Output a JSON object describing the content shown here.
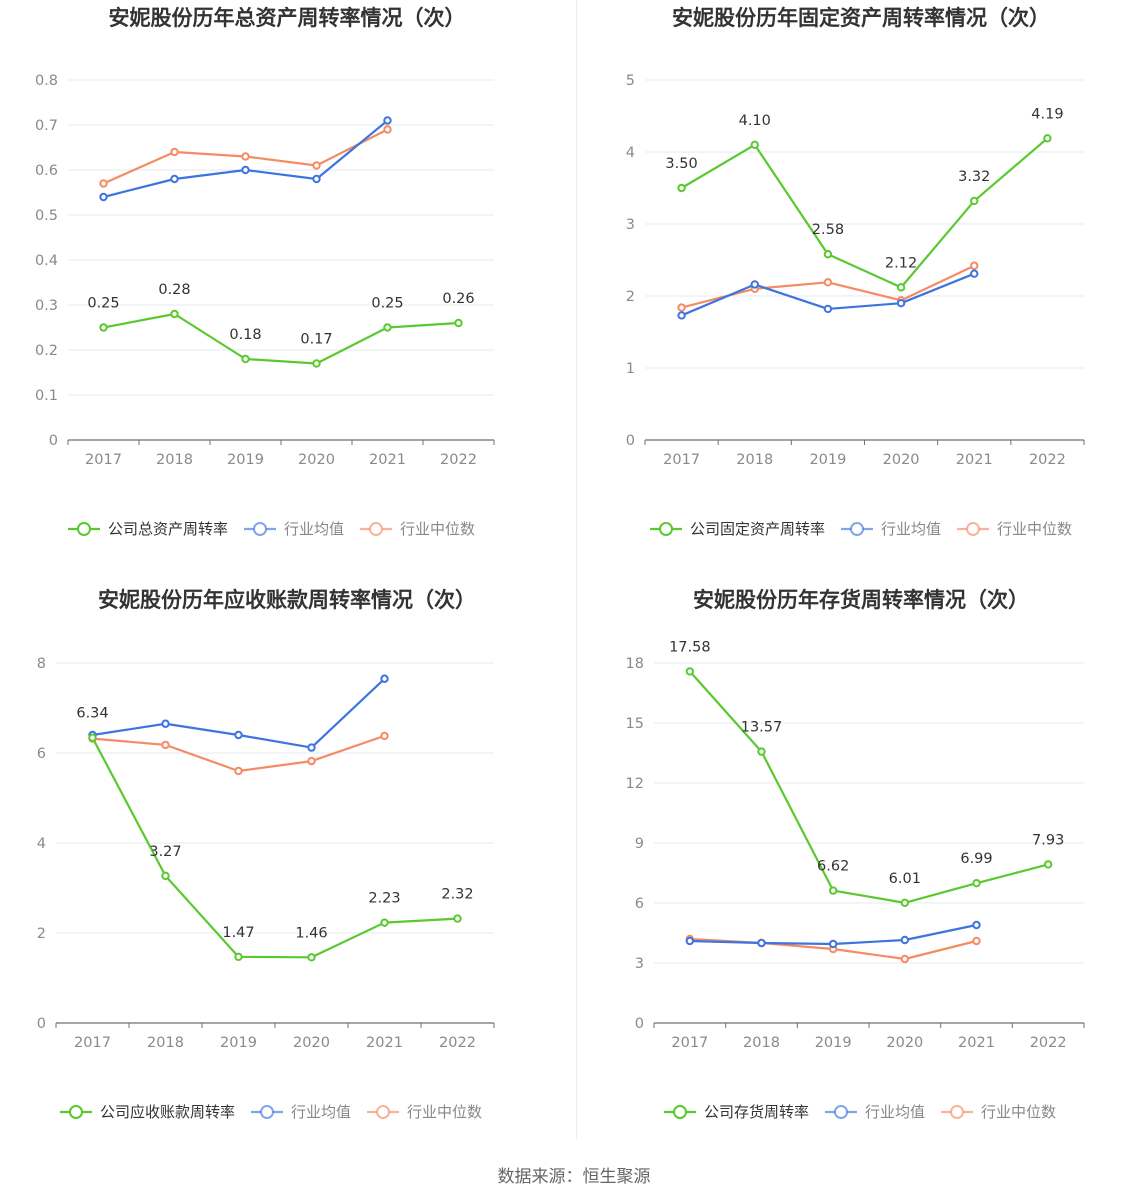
{
  "colors": {
    "company": "#5ac92f",
    "industry_avg": "#3d74e0",
    "industry_median": "#f58b63"
  },
  "source": "数据来源：恒生聚源",
  "chart_data": [
    {
      "type": "line",
      "title": "安妮股份历年总资产周转率情况（次）",
      "categories": [
        "2017",
        "2018",
        "2019",
        "2020",
        "2021",
        "2022"
      ],
      "ylim": [
        0,
        0.8
      ],
      "yticks": [
        0,
        0.1,
        0.2,
        0.3,
        0.4,
        0.5,
        0.6,
        0.7,
        0.8
      ],
      "ytick_labels": [
        "0",
        "0.1",
        "0.2",
        "0.3",
        "0.4",
        "0.5",
        "0.6",
        "0.7",
        "0.8"
      ],
      "grid": true,
      "legend_position": "bottom",
      "series": [
        {
          "name": "公司总资产周转率",
          "role": "company",
          "values": [
            0.25,
            0.28,
            0.18,
            0.17,
            0.25,
            0.26
          ],
          "labels": [
            "0.25",
            "0.28",
            "0.18",
            "0.17",
            "0.25",
            "0.26"
          ]
        },
        {
          "name": "行业均值",
          "role": "industry_avg",
          "values": [
            0.54,
            0.58,
            0.6,
            0.58,
            0.71,
            null
          ]
        },
        {
          "name": "行业中位数",
          "role": "industry_median",
          "values": [
            0.57,
            0.64,
            0.63,
            0.61,
            0.69,
            null
          ]
        }
      ]
    },
    {
      "type": "line",
      "title": "安妮股份历年固定资产周转率情况（次）",
      "categories": [
        "2017",
        "2018",
        "2019",
        "2020",
        "2021",
        "2022"
      ],
      "ylim": [
        0,
        5
      ],
      "yticks": [
        0,
        1,
        2,
        3,
        4,
        5
      ],
      "ytick_labels": [
        "0",
        "1",
        "2",
        "3",
        "4",
        "5"
      ],
      "grid": true,
      "legend_position": "bottom",
      "series": [
        {
          "name": "公司固定资产周转率",
          "role": "company",
          "values": [
            3.5,
            4.1,
            2.58,
            2.12,
            3.32,
            4.19
          ],
          "labels": [
            "3.50",
            "4.10",
            "2.58",
            "2.12",
            "3.32",
            "4.19"
          ]
        },
        {
          "name": "行业均值",
          "role": "industry_avg",
          "values": [
            1.73,
            2.16,
            1.82,
            1.9,
            2.31,
            null
          ]
        },
        {
          "name": "行业中位数",
          "role": "industry_median",
          "values": [
            1.84,
            2.1,
            2.19,
            1.94,
            2.42,
            null
          ]
        }
      ]
    },
    {
      "type": "line",
      "title": "安妮股份历年应收账款周转率情况（次）",
      "categories": [
        "2017",
        "2018",
        "2019",
        "2020",
        "2021",
        "2022"
      ],
      "ylim": [
        0,
        8
      ],
      "yticks": [
        0,
        2,
        4,
        6,
        8
      ],
      "ytick_labels": [
        "0",
        "2",
        "4",
        "6",
        "8"
      ],
      "grid": true,
      "legend_position": "bottom",
      "series": [
        {
          "name": "公司应收账款周转率",
          "role": "company",
          "values": [
            6.34,
            3.27,
            1.47,
            1.46,
            2.23,
            2.32
          ],
          "labels": [
            "6.34",
            "3.27",
            "1.47",
            "1.46",
            "2.23",
            "2.32"
          ]
        },
        {
          "name": "行业均值",
          "role": "industry_avg",
          "values": [
            6.4,
            6.65,
            6.4,
            6.12,
            7.65,
            null
          ]
        },
        {
          "name": "行业中位数",
          "role": "industry_median",
          "values": [
            6.32,
            6.18,
            5.6,
            5.82,
            6.38,
            null
          ]
        }
      ]
    },
    {
      "type": "line",
      "title": "安妮股份历年存货周转率情况（次）",
      "categories": [
        "2017",
        "2018",
        "2019",
        "2020",
        "2021",
        "2022"
      ],
      "ylim": [
        0,
        18
      ],
      "yticks": [
        0,
        3,
        6,
        9,
        12,
        15,
        18
      ],
      "ytick_labels": [
        "0",
        "3",
        "6",
        "9",
        "12",
        "15",
        "18"
      ],
      "grid": true,
      "legend_position": "bottom",
      "series": [
        {
          "name": "公司存货周转率",
          "role": "company",
          "values": [
            17.58,
            13.57,
            6.62,
            6.01,
            6.99,
            7.93
          ],
          "labels": [
            "17.58",
            "13.57",
            "6.62",
            "6.01",
            "6.99",
            "7.93"
          ]
        },
        {
          "name": "行业均值",
          "role": "industry_avg",
          "values": [
            4.1,
            4.0,
            3.95,
            4.15,
            4.9,
            null
          ]
        },
        {
          "name": "行业中位数",
          "role": "industry_median",
          "values": [
            4.2,
            4.0,
            3.7,
            3.2,
            4.1,
            null
          ]
        }
      ]
    }
  ]
}
